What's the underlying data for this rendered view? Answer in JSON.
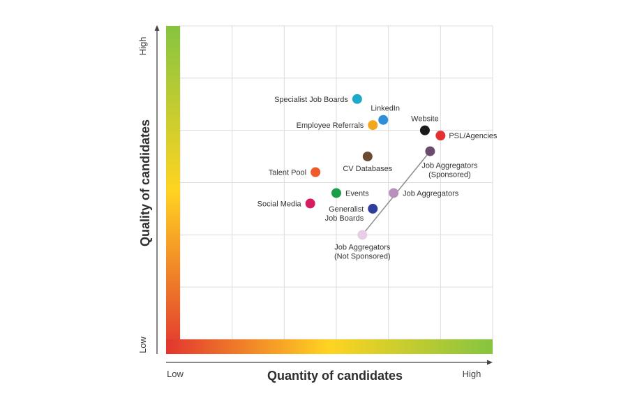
{
  "chart_data": {
    "type": "scatter",
    "title": "",
    "xlabel": "Quantity of candidates",
    "ylabel": "Quality of candidates",
    "x_low_label": "Low",
    "x_high_label": "High",
    "y_low_label": "Low",
    "y_high_label": "High",
    "xlim": [
      0,
      6
    ],
    "ylim": [
      0,
      6
    ],
    "grid": true,
    "points": [
      {
        "label": "Specialist Job Boards",
        "x": 3.4,
        "y": 4.6,
        "color": "#1ea8c9"
      },
      {
        "label": "LinkedIn",
        "x": 3.9,
        "y": 4.2,
        "color": "#2f8fd8"
      },
      {
        "label": "Employee Referrals",
        "x": 3.7,
        "y": 4.1,
        "color": "#f2a81d"
      },
      {
        "label": "Website",
        "x": 4.7,
        "y": 4.0,
        "color": "#1a1a1a"
      },
      {
        "label": "PSL/Agencies",
        "x": 5.0,
        "y": 3.9,
        "color": "#e2312f"
      },
      {
        "label": "Job Aggregators (Sponsored)",
        "x": 4.8,
        "y": 3.6,
        "color": "#6b4a6b"
      },
      {
        "label": "CV Databases",
        "x": 3.6,
        "y": 3.5,
        "color": "#6b4a36"
      },
      {
        "label": "Talent Pool",
        "x": 2.6,
        "y": 3.2,
        "color": "#f05a28"
      },
      {
        "label": "Events",
        "x": 3.0,
        "y": 2.8,
        "color": "#1a9f48"
      },
      {
        "label": "Job Aggregators",
        "x": 4.1,
        "y": 2.8,
        "color": "#b98fbd"
      },
      {
        "label": "Social Media",
        "x": 2.5,
        "y": 2.6,
        "color": "#d81b60"
      },
      {
        "label": "Generalist Job Boards",
        "x": 3.7,
        "y": 2.5,
        "color": "#2e3e9a"
      },
      {
        "label": "Job Aggregators (Not Sponsored)",
        "x": 3.5,
        "y": 2.0,
        "color": "#e6cfe6"
      }
    ],
    "connector": {
      "from": "Job Aggregators (Not Sponsored)",
      "to": "Job Aggregators (Sponsored)"
    }
  }
}
